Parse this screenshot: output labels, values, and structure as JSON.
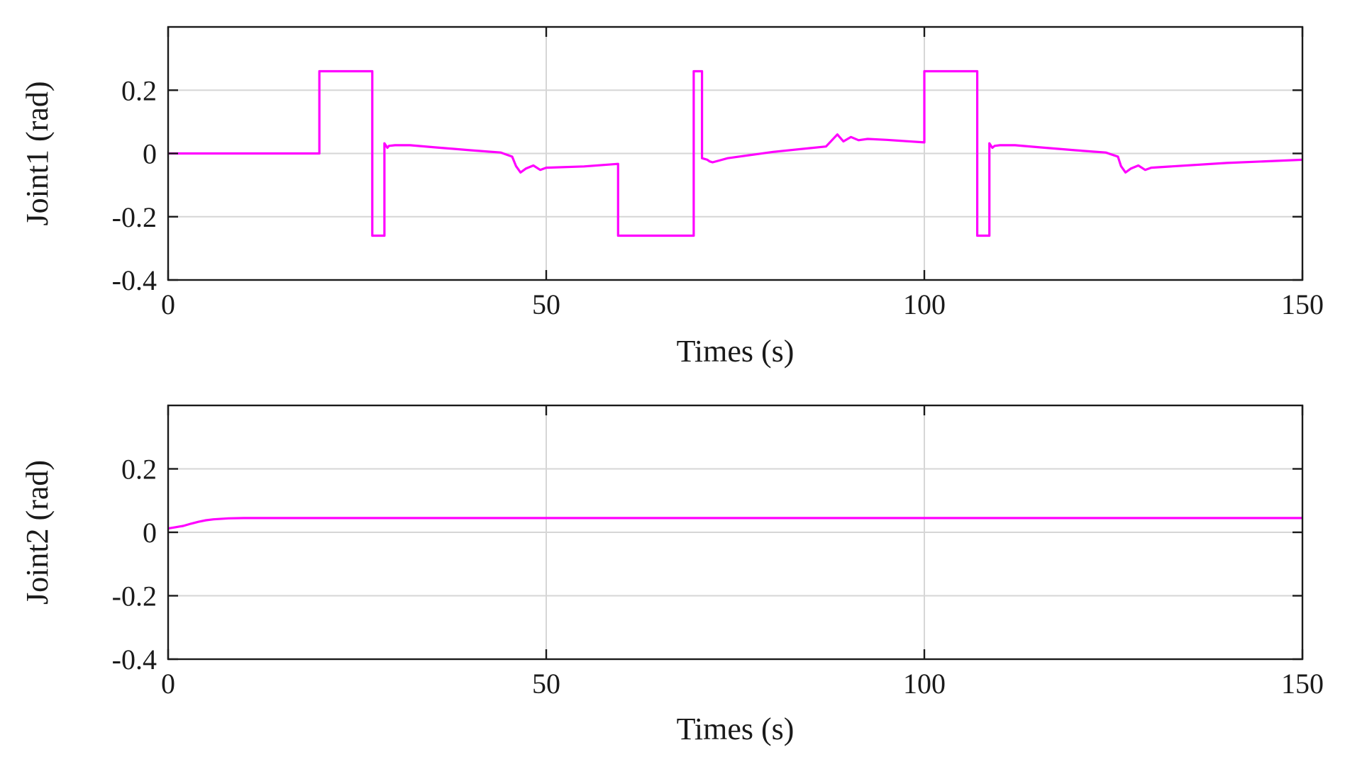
{
  "chart_data": [
    {
      "type": "line",
      "xlabel": "Times (s)",
      "ylabel": "Joint1 (rad)",
      "xlim": [
        0,
        150
      ],
      "ylim": [
        -0.4,
        0.4
      ],
      "xticks": [
        0,
        50,
        100,
        150
      ],
      "yticks": [
        -0.4,
        -0.2,
        0,
        0.2
      ],
      "xtick_labels": [
        "0",
        "50",
        "100",
        "150"
      ],
      "ytick_labels": [
        "-0.4",
        "-0.2",
        "0",
        "0.2"
      ],
      "grid": true,
      "line_color": "#ff00ff",
      "series": [
        {
          "x": [
            0,
            20,
            20,
            27,
            27,
            28.6,
            28.6,
            29,
            29.2,
            30,
            32,
            35,
            40,
            44,
            45.5,
            46,
            46.6,
            47.3,
            48.3,
            49.2,
            50,
            55,
            59.5,
            59.5,
            69.5,
            69.5,
            70.6,
            70.6,
            71.3,
            71.6,
            72,
            74,
            80,
            87,
            88.5,
            89.3,
            90.3,
            91.3,
            92.5,
            95,
            100,
            100,
            107,
            107,
            108.6,
            108.6,
            109,
            109.3,
            110,
            112,
            115,
            120,
            124,
            125.6,
            126,
            126.6,
            127.3,
            128.3,
            129.2,
            130,
            140,
            150
          ],
          "y": [
            0,
            0,
            0.26,
            0.26,
            -0.26,
            -0.26,
            0.032,
            0.018,
            0.024,
            0.026,
            0.026,
            0.02,
            0.01,
            0.003,
            -0.01,
            -0.04,
            -0.06,
            -0.048,
            -0.038,
            -0.052,
            -0.045,
            -0.041,
            -0.033,
            -0.26,
            -0.26,
            0.26,
            0.26,
            -0.015,
            -0.02,
            -0.025,
            -0.028,
            -0.015,
            0.005,
            0.022,
            0.06,
            0.038,
            0.052,
            0.042,
            0.046,
            0.043,
            0.035,
            0.26,
            0.26,
            -0.26,
            -0.26,
            0.032,
            0.018,
            0.024,
            0.026,
            0.026,
            0.02,
            0.01,
            0.003,
            -0.01,
            -0.04,
            -0.06,
            -0.048,
            -0.038,
            -0.052,
            -0.045,
            -0.03,
            -0.02
          ]
        }
      ]
    },
    {
      "type": "line",
      "xlabel": "Times (s)",
      "ylabel": "Joint2 (rad)",
      "xlim": [
        0,
        150
      ],
      "ylim": [
        -0.4,
        0.4
      ],
      "xticks": [
        0,
        50,
        100,
        150
      ],
      "yticks": [
        -0.4,
        -0.2,
        0,
        0.2
      ],
      "xtick_labels": [
        "0",
        "50",
        "100",
        "150"
      ],
      "ytick_labels": [
        "-0.4",
        "-0.2",
        "0",
        "0.2"
      ],
      "grid": true,
      "line_color": "#ff00ff",
      "series": [
        {
          "x": [
            0,
            0.5,
            1,
            2,
            3,
            4,
            5,
            6,
            8,
            10,
            15,
            20,
            50,
            100,
            150
          ],
          "y": [
            0.012,
            0.014,
            0.016,
            0.02,
            0.027,
            0.033,
            0.038,
            0.041,
            0.044,
            0.045,
            0.045,
            0.045,
            0.045,
            0.045,
            0.045
          ]
        }
      ]
    }
  ]
}
